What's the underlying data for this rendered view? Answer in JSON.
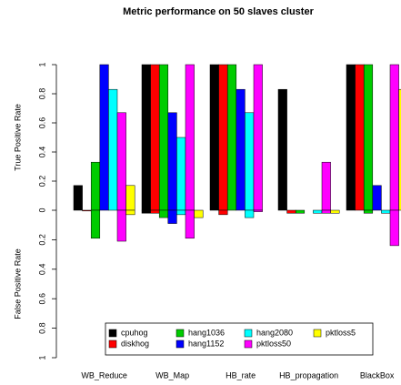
{
  "chart_data": [
    {
      "type": "bar",
      "title": "Metric performance on 50 slaves cluster",
      "ylabel": "True Positive Rate",
      "categories": [
        "WB_Reduce",
        "WB_Map",
        "HB_rate",
        "HB_propagation",
        "BlackBox"
      ],
      "ylim": [
        0,
        1
      ],
      "yticks": [
        0,
        0.2,
        0.4,
        0.6,
        0.8,
        1
      ],
      "series": [
        {
          "name": "cpuhog",
          "color": "#000000",
          "values": [
            0.17,
            1,
            1,
            0.83,
            1
          ]
        },
        {
          "name": "diskhog",
          "color": "#ff0000",
          "values": [
            0,
            1,
            1,
            0,
            1
          ]
        },
        {
          "name": "hang1036",
          "color": "#00cc00",
          "values": [
            0.33,
            1,
            1,
            0,
            1
          ]
        },
        {
          "name": "hang1152",
          "color": "#0000ff",
          "values": [
            1,
            0.67,
            0.83,
            0,
            0.17
          ]
        },
        {
          "name": "hang2080",
          "color": "#00ffff",
          "values": [
            0.83,
            0.5,
            0.67,
            0,
            0
          ]
        },
        {
          "name": "pktloss50",
          "color": "#ff00ff",
          "values": [
            0.67,
            1,
            1,
            0.33,
            1
          ]
        },
        {
          "name": "pktloss5",
          "color": "#ffff00",
          "values": [
            0.17,
            0,
            0,
            0,
            0.83
          ]
        }
      ]
    },
    {
      "type": "bar",
      "ylabel": "False Positive Rate",
      "ylim": [
        0,
        1
      ],
      "yticks": [
        0.2,
        0.4,
        0.6,
        0.8,
        1
      ],
      "series": [
        {
          "values": [
            0,
            0.02,
            0,
            0,
            0
          ]
        },
        {
          "values": [
            0.005,
            0.02,
            0.03,
            0.02,
            0
          ]
        },
        {
          "values": [
            0.19,
            0.05,
            0,
            0.02,
            0.02
          ]
        },
        {
          "values": [
            0,
            0.09,
            0,
            0,
            0
          ]
        },
        {
          "values": [
            0,
            0.03,
            0.05,
            0.02,
            0.02
          ]
        },
        {
          "values": [
            0.21,
            0.19,
            0.01,
            0.02,
            0.24
          ]
        },
        {
          "values": [
            0.03,
            0.05,
            0,
            0.02,
            0
          ]
        }
      ]
    }
  ]
}
